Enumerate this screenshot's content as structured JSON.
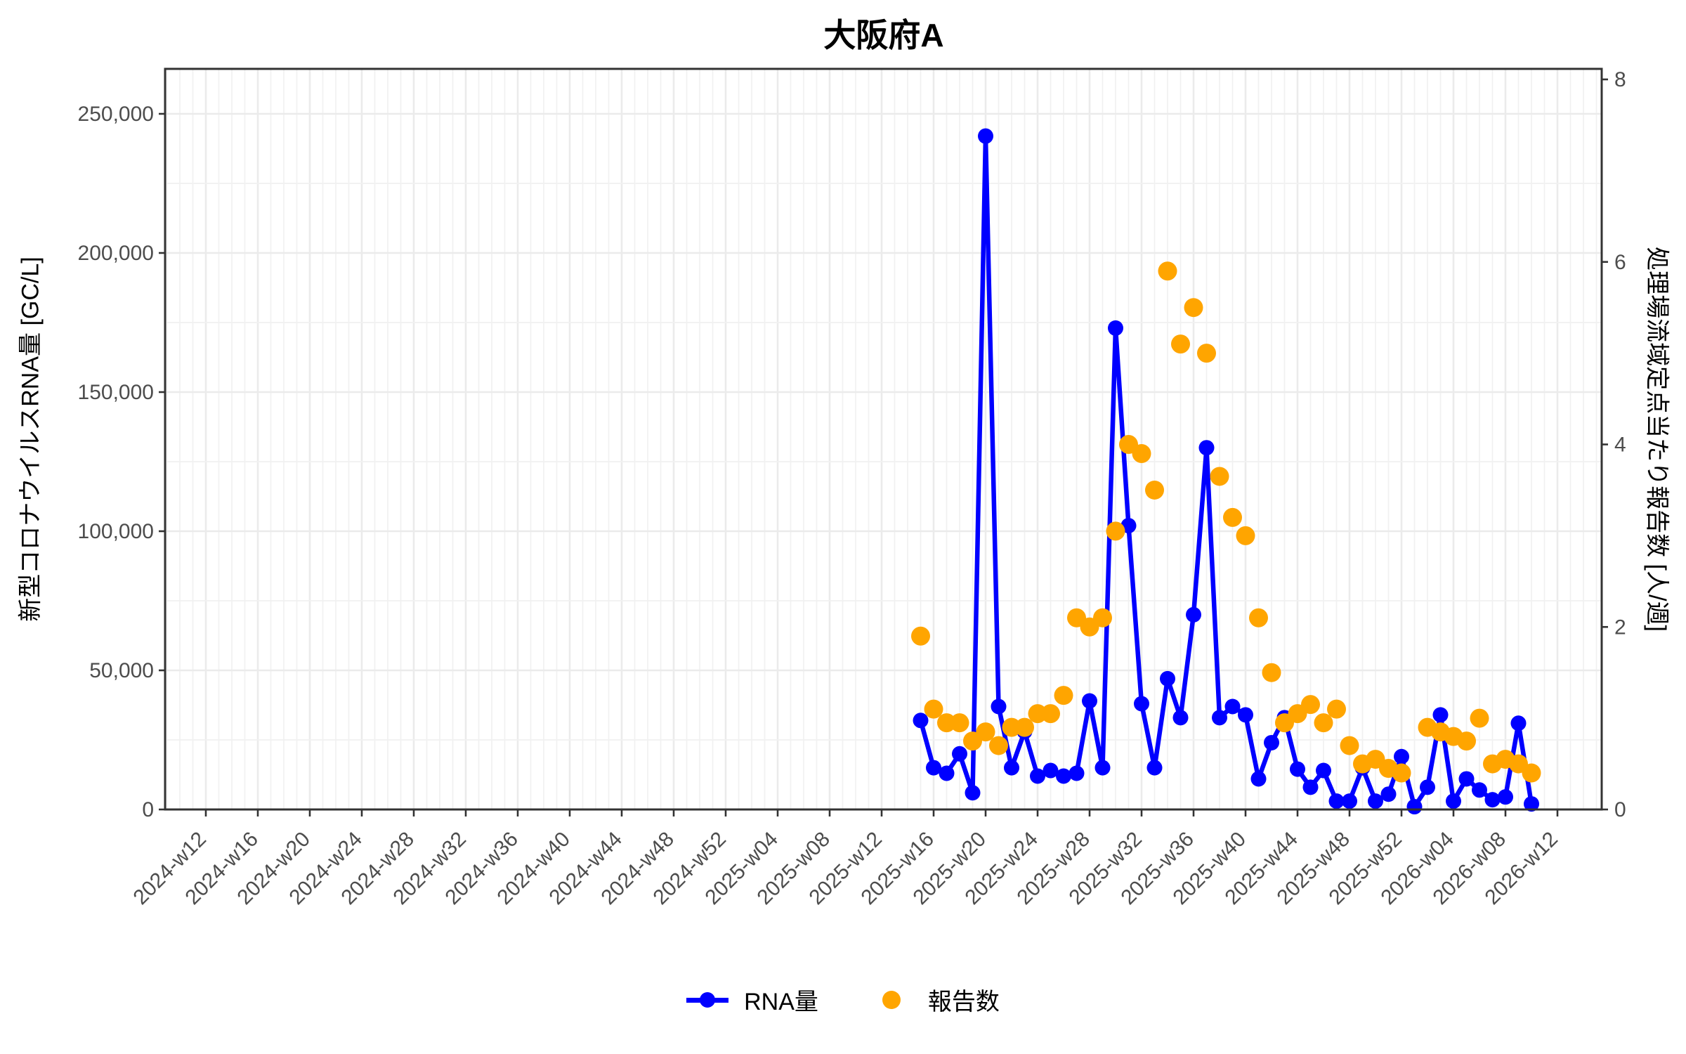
{
  "chart_data": {
    "type": "line",
    "title": "大阪府A",
    "ylabel_left": "新型コロナウイルスRNA量 [GC/L]",
    "ylabel_right": "処理場流域定点当たり報告数 [人/週]",
    "ylim_left": [
      0,
      265000
    ],
    "ylim_right": [
      0,
      8.2
    ],
    "yticks_left": [
      0,
      50000,
      100000,
      150000,
      200000,
      250000
    ],
    "yticks_minor_left": [
      25000,
      75000,
      125000,
      175000,
      225000
    ],
    "yticks_right": [
      0,
      2,
      4,
      6,
      8
    ],
    "grid": "on",
    "legend_position": "bottom",
    "x_axis_start_label": "2024-w12",
    "x_tick_step_weeks": 4,
    "x_tick_labels": [
      "2024-w12",
      "2024-w16",
      "2024-w20",
      "2024-w24",
      "2024-w28",
      "2024-w32",
      "2024-w36",
      "2024-w40",
      "2024-w44",
      "2024-w48",
      "2024-w52",
      "2025-w04",
      "2025-w08",
      "2025-w12",
      "2025-w16",
      "2025-w20",
      "2025-w24",
      "2025-w28",
      "2025-w32",
      "2025-w36",
      "2025-w40",
      "2025-w44",
      "2025-w48",
      "2025-w52",
      "2026-w04",
      "2026-w08",
      "2026-w12"
    ],
    "data_start_week_index": 55,
    "weeks": [
      "2025-w15",
      "2025-w16",
      "2025-w17",
      "2025-w18",
      "2025-w19",
      "2025-w20",
      "2025-w21",
      "2025-w22",
      "2025-w23",
      "2025-w24",
      "2025-w25",
      "2025-w26",
      "2025-w27",
      "2025-w28",
      "2025-w29",
      "2025-w30",
      "2025-w31",
      "2025-w32",
      "2025-w33",
      "2025-w34",
      "2025-w35",
      "2025-w36",
      "2025-w37",
      "2025-w38",
      "2025-w39",
      "2025-w40",
      "2025-w41",
      "2025-w42",
      "2025-w43",
      "2025-w44",
      "2025-w45",
      "2025-w46",
      "2025-w47",
      "2025-w48",
      "2025-w49",
      "2025-w50",
      "2025-w51",
      "2025-w52",
      "2026-w01",
      "2026-w02",
      "2026-w03",
      "2026-w04",
      "2026-w05",
      "2026-w06",
      "2026-w07",
      "2026-w08",
      "2026-w09",
      "2026-w10"
    ],
    "series": [
      {
        "name": "RNA量",
        "type": "line-with-points",
        "axis": "left",
        "color": "#0000FF",
        "values": [
          32000,
          15000,
          13000,
          20000,
          6000,
          242000,
          37000,
          15000,
          28000,
          12000,
          14000,
          12000,
          13000,
          39000,
          15000,
          173000,
          102000,
          38000,
          15000,
          47000,
          33000,
          70000,
          130000,
          33000,
          37000,
          34000,
          11000,
          24000,
          33000,
          14500,
          8000,
          14000,
          3000,
          3000,
          15000,
          3000,
          5500,
          19000,
          1000,
          8000,
          34000,
          3000,
          11000,
          7000,
          3500,
          4500,
          31000,
          2000
        ]
      },
      {
        "name": "報告数",
        "type": "scatter",
        "axis": "right",
        "color": "#FFA500",
        "values": [
          1.9,
          1.1,
          0.95,
          0.95,
          0.75,
          0.85,
          0.7,
          0.9,
          0.9,
          1.05,
          1.05,
          1.25,
          2.1,
          2.0,
          2.1,
          3.05,
          4.0,
          3.9,
          3.5,
          5.9,
          5.1,
          5.5,
          5.0,
          3.65,
          3.2,
          3.0,
          2.1,
          1.5,
          0.95,
          1.05,
          1.15,
          0.95,
          1.1,
          0.7,
          0.5,
          0.55,
          0.45,
          0.4,
          null,
          0.9,
          0.85,
          0.8,
          0.75,
          1.0,
          0.5,
          0.55,
          0.5,
          0.4
        ]
      }
    ],
    "colors": {
      "grid_major": "#EBEBEB",
      "grid_minor": "#F1F1F1",
      "panel_border": "#333333",
      "tick_text": "#4D4D4D"
    },
    "legend": {
      "items": [
        "RNA量",
        "報告数"
      ]
    }
  }
}
